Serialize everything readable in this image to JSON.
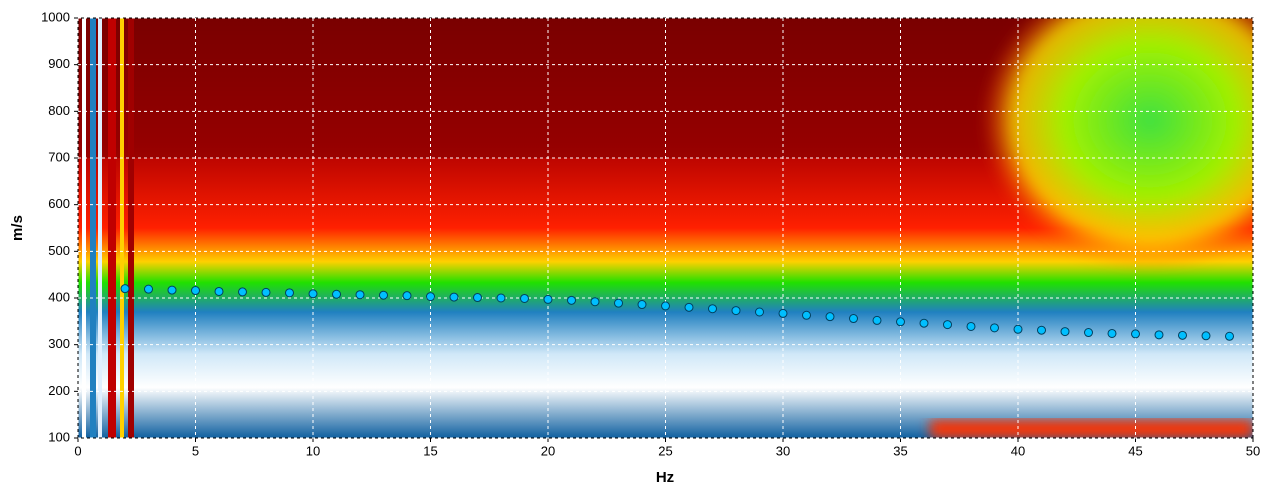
{
  "chart_data": {
    "type": "scatter",
    "x_label": "Hz",
    "y_label": "m/s",
    "x": [
      2,
      3,
      4,
      5,
      6,
      7,
      8,
      9,
      10,
      11,
      12,
      13,
      14,
      15,
      16,
      17,
      18,
      19,
      20,
      21,
      22,
      23,
      24,
      25,
      26,
      27,
      28,
      29,
      30,
      31,
      32,
      33,
      34,
      35,
      36,
      37,
      38,
      39,
      40,
      41,
      42,
      43,
      44,
      45,
      46,
      47,
      48,
      49
    ],
    "values": [
      420,
      419,
      417,
      416,
      414,
      413,
      412,
      411,
      409,
      408,
      407,
      406,
      405,
      403,
      402,
      401,
      400,
      399,
      397,
      395,
      392,
      389,
      386,
      383,
      380,
      377,
      373,
      370,
      367,
      363,
      360,
      356,
      352,
      349,
      346,
      343,
      339,
      336,
      333,
      331,
      328,
      326,
      324,
      323,
      321,
      320,
      319,
      318
    ],
    "color": "#00bfff",
    "xlim": [
      0,
      50
    ],
    "ylim": [
      100,
      1000
    ],
    "xticks": [
      0,
      5,
      10,
      15,
      20,
      25,
      30,
      35,
      40,
      45,
      50
    ],
    "yticks": [
      100,
      200,
      300,
      400,
      500,
      600,
      700,
      800,
      900,
      1000
    ],
    "grid": true
  }
}
